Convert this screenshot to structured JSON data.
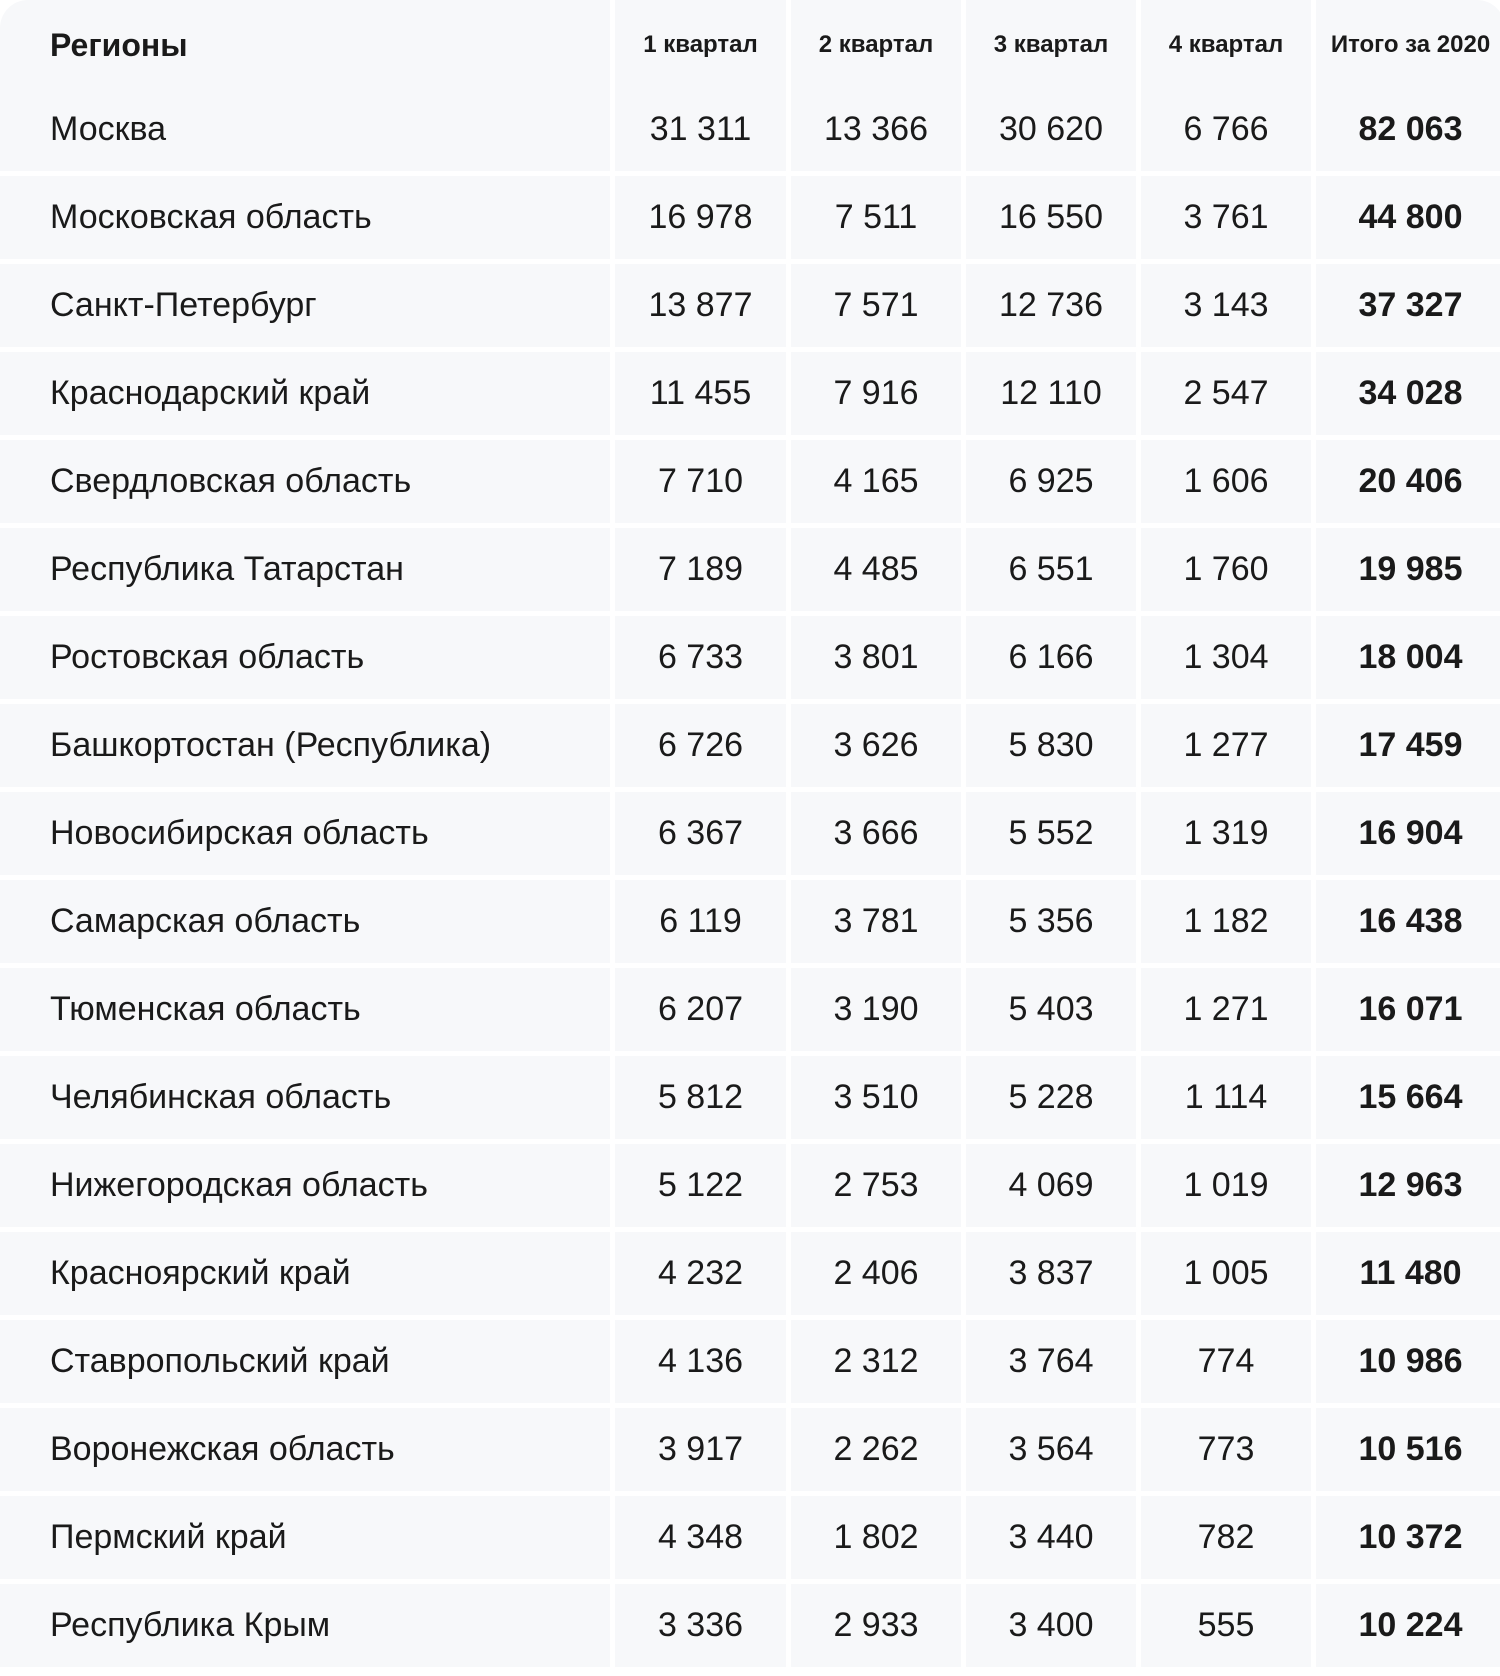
{
  "headers": [
    "Регионы",
    "1 квартал",
    "2 квартал",
    "3 квартал",
    "4 квартал",
    "Итого за 2020"
  ],
  "rows": [
    [
      "Москва",
      "31 311",
      "13 366",
      "30 620",
      "6 766",
      "82 063"
    ],
    [
      "Московская область",
      "16 978",
      "7 511",
      "16 550",
      "3 761",
      "44 800"
    ],
    [
      "Санкт-Петербург",
      "13 877",
      "7 571",
      "12 736",
      "3 143",
      "37 327"
    ],
    [
      "Краснодарский край",
      "11 455",
      "7 916",
      "12 110",
      "2 547",
      "34 028"
    ],
    [
      "Свердловская область",
      "7 710",
      "4 165",
      "6 925",
      "1 606",
      "20 406"
    ],
    [
      "Республика Татарстан",
      "7 189",
      "4 485",
      "6 551",
      "1 760",
      "19 985"
    ],
    [
      "Ростовская область",
      "6 733",
      "3 801",
      "6 166",
      "1 304",
      "18 004"
    ],
    [
      "Башкортостан (Республика)",
      "6 726",
      "3 626",
      "5 830",
      "1 277",
      "17 459"
    ],
    [
      "Новосибирская область",
      "6 367",
      "3 666",
      "5 552",
      "1 319",
      "16 904"
    ],
    [
      "Самарская область",
      "6 119",
      "3 781",
      "5 356",
      "1 182",
      "16 438"
    ],
    [
      "Тюменская область",
      "6 207",
      "3 190",
      "5 403",
      "1 271",
      "16 071"
    ],
    [
      "Челябинская область",
      "5 812",
      "3 510",
      "5 228",
      "1 114",
      "15 664"
    ],
    [
      "Нижегородская область",
      "5 122",
      "2 753",
      "4 069",
      "1 019",
      "12 963"
    ],
    [
      "Красноярский край",
      "4 232",
      "2 406",
      "3 837",
      "1 005",
      "11 480"
    ],
    [
      "Ставропольский край",
      "4 136",
      "2 312",
      "3 764",
      "774",
      "10 986"
    ],
    [
      "Воронежская область",
      "3 917",
      "2 262",
      "3 564",
      "773",
      "10 516"
    ],
    [
      "Пермский край",
      "4 348",
      "1 802",
      "3 440",
      "782",
      "10 372"
    ],
    [
      "Республика Крым",
      "3 336",
      "2 933",
      "3 400",
      "555",
      "10 224"
    ]
  ]
}
